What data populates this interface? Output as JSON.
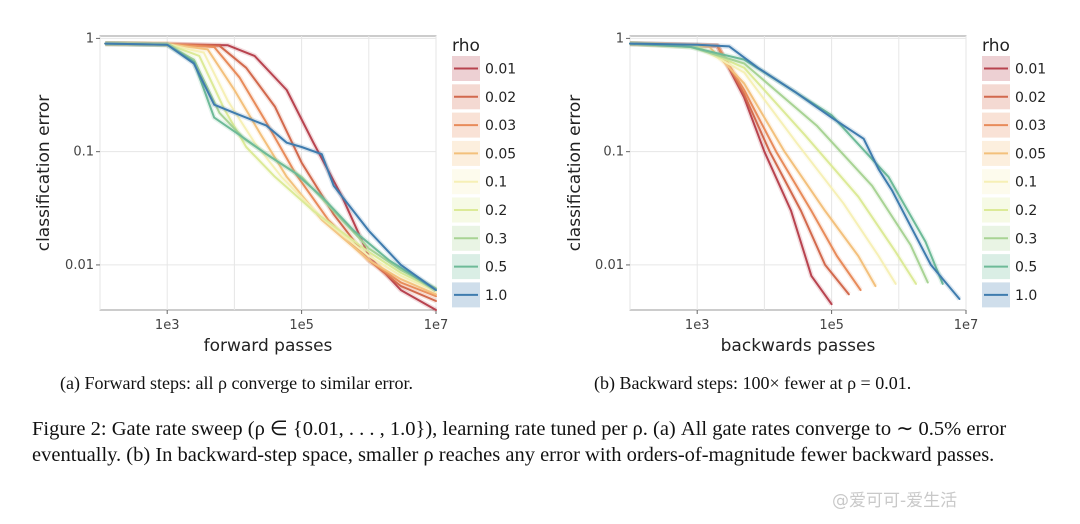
{
  "chart_data": [
    {
      "type": "line",
      "xlabel": "forward passes",
      "ylabel": "classification error",
      "xscale": "log",
      "yscale": "log",
      "xticks": [
        "1e3",
        "1e5",
        "1e7"
      ],
      "yticks": [
        "1",
        "0.1",
        "0.01"
      ],
      "xlim": [
        100,
        10000000
      ],
      "ylim": [
        0.004,
        1.05
      ],
      "grid": true,
      "legend": {
        "title": "rho",
        "placement": "right"
      },
      "series": [
        {
          "name": "0.01",
          "color": "#b8434f",
          "points": [
            [
              120,
              0.9
            ],
            [
              1000,
              0.89
            ],
            [
              8000,
              0.87
            ],
            [
              20000,
              0.7
            ],
            [
              60000,
              0.35
            ],
            [
              150000,
              0.12
            ],
            [
              400000,
              0.04
            ],
            [
              1000000,
              0.012
            ],
            [
              3000000,
              0.006
            ],
            [
              10000000,
              0.004
            ]
          ]
        },
        {
          "name": "0.02",
          "color": "#d2694d",
          "points": [
            [
              120,
              0.9
            ],
            [
              1000,
              0.89
            ],
            [
              6000,
              0.86
            ],
            [
              15000,
              0.55
            ],
            [
              40000,
              0.25
            ],
            [
              100000,
              0.08
            ],
            [
              300000,
              0.028
            ],
            [
              1000000,
              0.011
            ],
            [
              3000000,
              0.0065
            ],
            [
              10000000,
              0.0048
            ]
          ]
        },
        {
          "name": "0.03",
          "color": "#e88b5a",
          "points": [
            [
              120,
              0.9
            ],
            [
              1000,
              0.89
            ],
            [
              5000,
              0.84
            ],
            [
              12000,
              0.45
            ],
            [
              30000,
              0.18
            ],
            [
              80000,
              0.065
            ],
            [
              250000,
              0.025
            ],
            [
              1000000,
              0.011
            ],
            [
              3000000,
              0.007
            ],
            [
              10000000,
              0.0053
            ]
          ]
        },
        {
          "name": "0.05",
          "color": "#f3c07c",
          "points": [
            [
              120,
              0.9
            ],
            [
              1000,
              0.89
            ],
            [
              4000,
              0.8
            ],
            [
              10000,
              0.35
            ],
            [
              25000,
              0.14
            ],
            [
              60000,
              0.06
            ],
            [
              200000,
              0.025
            ],
            [
              1000000,
              0.011
            ],
            [
              3000000,
              0.0075
            ],
            [
              10000000,
              0.0055
            ]
          ]
        },
        {
          "name": "0.1",
          "color": "#f6f0b6",
          "points": [
            [
              120,
              0.9
            ],
            [
              1000,
              0.89
            ],
            [
              3500,
              0.75
            ],
            [
              8000,
              0.28
            ],
            [
              20000,
              0.12
            ],
            [
              50000,
              0.06
            ],
            [
              200000,
              0.026
            ],
            [
              1000000,
              0.012
            ],
            [
              3000000,
              0.008
            ],
            [
              10000000,
              0.0058
            ]
          ]
        },
        {
          "name": "0.2",
          "color": "#dcea97",
          "points": [
            [
              120,
              0.9
            ],
            [
              1000,
              0.89
            ],
            [
              3000,
              0.7
            ],
            [
              7000,
              0.24
            ],
            [
              15000,
              0.11
            ],
            [
              40000,
              0.06
            ],
            [
              150000,
              0.03
            ],
            [
              1000000,
              0.013
            ],
            [
              3000000,
              0.0085
            ],
            [
              10000000,
              0.006
            ]
          ]
        },
        {
          "name": "0.3",
          "color": "#a8d394",
          "points": [
            [
              120,
              0.9
            ],
            [
              1000,
              0.88
            ],
            [
              2500,
              0.65
            ],
            [
              6000,
              0.22
            ],
            [
              14000,
              0.13
            ],
            [
              40000,
              0.085
            ],
            [
              100000,
              0.06
            ],
            [
              300000,
              0.03
            ],
            [
              1000000,
              0.014
            ],
            [
              3000000,
              0.009
            ],
            [
              10000000,
              0.0062
            ]
          ]
        },
        {
          "name": "0.5",
          "color": "#6dba98",
          "points": [
            [
              120,
              0.9
            ],
            [
              1000,
              0.88
            ],
            [
              2500,
              0.62
            ],
            [
              5000,
              0.2
            ],
            [
              12000,
              0.14
            ],
            [
              30000,
              0.095
            ],
            [
              80000,
              0.065
            ],
            [
              200000,
              0.04
            ],
            [
              600000,
              0.02
            ],
            [
              2000000,
              0.011
            ],
            [
              10000000,
              0.006
            ]
          ]
        },
        {
          "name": "1.0",
          "color": "#3f7cae",
          "points": [
            [
              120,
              0.9
            ],
            [
              1000,
              0.88
            ],
            [
              2500,
              0.6
            ],
            [
              5000,
              0.26
            ],
            [
              10000,
              0.22
            ],
            [
              30000,
              0.17
            ],
            [
              60000,
              0.12
            ],
            [
              100000,
              0.11
            ],
            [
              200000,
              0.095
            ],
            [
              300000,
              0.05
            ],
            [
              1000000,
              0.02
            ],
            [
              3000000,
              0.01
            ],
            [
              10000000,
              0.006
            ]
          ]
        }
      ]
    },
    {
      "type": "line",
      "xlabel": "backwards passes",
      "ylabel": "classification error",
      "xscale": "log",
      "yscale": "log",
      "xticks": [
        "1e3",
        "1e5",
        "1e7"
      ],
      "yticks": [
        "1",
        "0.1",
        "0.01"
      ],
      "xlim": [
        100,
        10000000
      ],
      "ylim": [
        0.004,
        1.05
      ],
      "grid": true,
      "legend": {
        "title": "rho",
        "placement": "right"
      },
      "series": [
        {
          "name": "0.01",
          "color": "#b8434f",
          "points": [
            [
              100,
              0.9
            ],
            [
              2000,
              0.86
            ],
            [
              5000,
              0.3
            ],
            [
              10000,
              0.1
            ],
            [
              25000,
              0.03
            ],
            [
              50000,
              0.008
            ],
            [
              100000,
              0.0045
            ]
          ]
        },
        {
          "name": "0.02",
          "color": "#d2694d",
          "points": [
            [
              100,
              0.9
            ],
            [
              2000,
              0.86
            ],
            [
              5000,
              0.32
            ],
            [
              12000,
              0.1
            ],
            [
              35000,
              0.03
            ],
            [
              80000,
              0.01
            ],
            [
              180000,
              0.0055
            ]
          ]
        },
        {
          "name": "0.03",
          "color": "#e88b5a",
          "points": [
            [
              100,
              0.9
            ],
            [
              2000,
              0.86
            ],
            [
              5000,
              0.35
            ],
            [
              15000,
              0.1
            ],
            [
              50000,
              0.03
            ],
            [
              120000,
              0.012
            ],
            [
              270000,
              0.006
            ]
          ]
        },
        {
          "name": "0.05",
          "color": "#f3c07c",
          "points": [
            [
              100,
              0.9
            ],
            [
              1500,
              0.85
            ],
            [
              5000,
              0.4
            ],
            [
              20000,
              0.1
            ],
            [
              80000,
              0.03
            ],
            [
              250000,
              0.012
            ],
            [
              450000,
              0.0065
            ]
          ]
        },
        {
          "name": "0.1",
          "color": "#f6f0b6",
          "points": [
            [
              100,
              0.9
            ],
            [
              1000,
              0.85
            ],
            [
              5000,
              0.5
            ],
            [
              30000,
              0.12
            ],
            [
              150000,
              0.035
            ],
            [
              500000,
              0.012
            ],
            [
              900000,
              0.0068
            ]
          ]
        },
        {
          "name": "0.2",
          "color": "#dcea97",
          "points": [
            [
              100,
              0.9
            ],
            [
              1000,
              0.84
            ],
            [
              5000,
              0.55
            ],
            [
              40000,
              0.14
            ],
            [
              250000,
              0.04
            ],
            [
              900000,
              0.013
            ],
            [
              1800000,
              0.0068
            ]
          ]
        },
        {
          "name": "0.3",
          "color": "#a8d394",
          "points": [
            [
              100,
              0.9
            ],
            [
              800,
              0.84
            ],
            [
              5000,
              0.6
            ],
            [
              60000,
              0.17
            ],
            [
              400000,
              0.05
            ],
            [
              1500000,
              0.015
            ],
            [
              2700000,
              0.007
            ]
          ]
        },
        {
          "name": "0.5",
          "color": "#6dba98",
          "points": [
            [
              100,
              0.9
            ],
            [
              800,
              0.84
            ],
            [
              5000,
              0.65
            ],
            [
              100000,
              0.21
            ],
            [
              700000,
              0.06
            ],
            [
              2500000,
              0.016
            ],
            [
              4500000,
              0.0068
            ]
          ]
        },
        {
          "name": "1.0",
          "color": "#3f7cae",
          "points": [
            [
              100,
              0.9
            ],
            [
              1000,
              0.88
            ],
            [
              3000,
              0.85
            ],
            [
              8000,
              0.55
            ],
            [
              30000,
              0.33
            ],
            [
              100000,
              0.2
            ],
            [
              300000,
              0.13
            ],
            [
              500000,
              0.07
            ],
            [
              800000,
              0.045
            ],
            [
              1500000,
              0.022
            ],
            [
              3000000,
              0.01
            ],
            [
              8000000,
              0.005
            ]
          ]
        }
      ]
    }
  ],
  "captions": {
    "a": "(a) Forward steps: all ρ converge to similar error.",
    "b": "(b) Backward steps: 100× fewer at ρ = 0.01.",
    "figure": "Figure 2: Gate rate sweep (ρ ∈ {0.01, . . . , 1.0}), learning rate tuned per ρ. (a) All gate rates converge to ∼ 0.5% error eventually. (b) In backward-step space, smaller ρ reaches any error with orders-of-magnitude fewer backward passes."
  },
  "watermark": "@爱可可-爱生活"
}
